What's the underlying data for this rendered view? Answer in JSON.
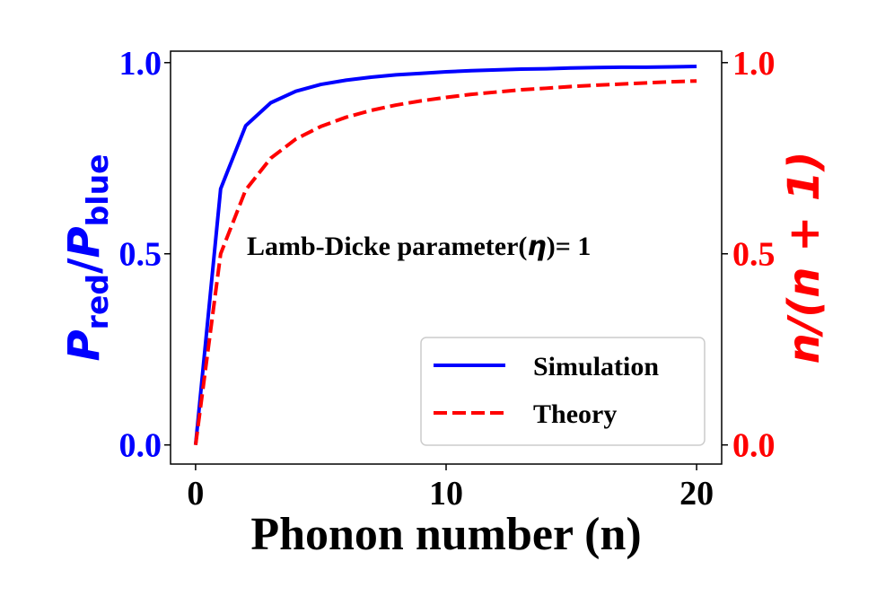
{
  "chart_data": {
    "type": "line",
    "xlabel": "Phonon number (n)",
    "ylabel_left": {
      "base": "P",
      "sub1": "red",
      "slash": "/",
      "base2": "P",
      "sub2": "blue"
    },
    "ylabel_right": "n/(n + 1)",
    "xlim": [
      -1,
      21
    ],
    "ylim_left": [
      -0.05,
      1.03
    ],
    "ylim_right": [
      -0.05,
      1.03
    ],
    "x_ticks": [
      "0",
      "10",
      "20"
    ],
    "x_tick_values": [
      0,
      10,
      20
    ],
    "y_ticks_left": [
      "0.0",
      "0.5",
      "1.0"
    ],
    "y_tick_values_left": [
      0.0,
      0.5,
      1.0
    ],
    "y_ticks_right": [
      "0.0",
      "0.5",
      "1.0"
    ],
    "y_tick_values_right": [
      0.0,
      0.5,
      1.0
    ],
    "annotation": {
      "prefix": "Lamb-Dicke parameter(",
      "symbol": "η",
      "suffix": ")= 1"
    },
    "legend_position": "lower-right",
    "series": [
      {
        "name": "Simulation",
        "style": "solid",
        "axis": "left",
        "color": "#0000ff",
        "x": [
          0,
          1,
          2,
          3,
          4,
          5,
          6,
          7,
          8,
          9,
          10,
          11,
          12,
          13,
          14,
          15,
          16,
          17,
          18,
          19,
          20
        ],
        "y": [
          0.0,
          0.67,
          0.835,
          0.895,
          0.925,
          0.943,
          0.954,
          0.962,
          0.968,
          0.972,
          0.976,
          0.979,
          0.981,
          0.983,
          0.984,
          0.986,
          0.987,
          0.988,
          0.988,
          0.989,
          0.99
        ]
      },
      {
        "name": "Theory",
        "style": "dashed",
        "axis": "right",
        "color": "#ff0000",
        "x": [
          0,
          1,
          2,
          3,
          4,
          5,
          6,
          7,
          8,
          9,
          10,
          11,
          12,
          13,
          14,
          15,
          16,
          17,
          18,
          19,
          20
        ],
        "y": [
          0.0,
          0.5,
          0.667,
          0.75,
          0.8,
          0.833,
          0.857,
          0.875,
          0.889,
          0.9,
          0.909,
          0.917,
          0.923,
          0.929,
          0.933,
          0.9375,
          0.941,
          0.944,
          0.947,
          0.95,
          0.952
        ]
      }
    ]
  },
  "colors": {
    "left_axis": "#0000ff",
    "right_axis": "#ff0000",
    "text": "#000000"
  }
}
